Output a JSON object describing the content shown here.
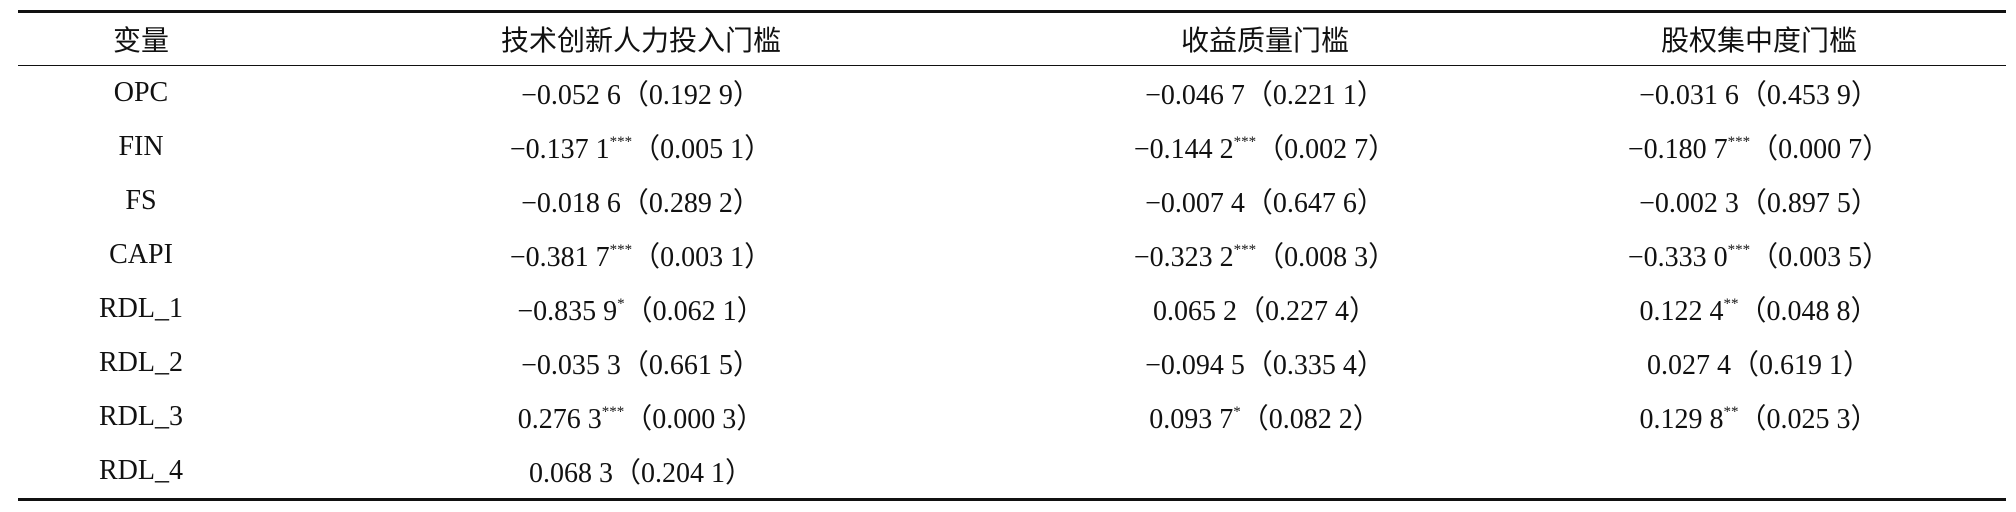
{
  "table": {
    "header": [
      "变量",
      "技术创新人力投入门槛",
      "收益质量门槛",
      "股权集中度门槛"
    ],
    "rows": [
      [
        "OPC",
        {
          "coef": "−0.052 6",
          "p": "（0.192 9）"
        },
        {
          "coef": "−0.046 7",
          "p": "（0.221 1）"
        },
        {
          "coef": "−0.031 6",
          "p": "（0.453 9）"
        }
      ],
      [
        "FIN",
        {
          "coef": "−0.137 1",
          "sig": "***",
          "p": "（0.005 1）"
        },
        {
          "coef": "−0.144 2",
          "sig": "***",
          "p": "（0.002 7）"
        },
        {
          "coef": "−0.180 7",
          "sig": "***",
          "p": "（0.000 7）"
        }
      ],
      [
        "FS",
        {
          "coef": "−0.018 6",
          "p": "（0.289 2）"
        },
        {
          "coef": "−0.007 4",
          "p": "（0.647 6）"
        },
        {
          "coef": "−0.002 3",
          "p": "（0.897 5）"
        }
      ],
      [
        "CAPI",
        {
          "coef": "−0.381 7",
          "sig": "***",
          "p": "（0.003 1）"
        },
        {
          "coef": "−0.323 2",
          "sig": "***",
          "p": "（0.008 3）"
        },
        {
          "coef": "−0.333 0",
          "sig": "***",
          "p": "（0.003 5）"
        }
      ],
      [
        "RDL_1",
        {
          "coef": "−0.835 9",
          "sig": "*",
          "p": "（0.062 1）"
        },
        {
          "coef": "0.065 2",
          "p": "（0.227 4）"
        },
        {
          "coef": "0.122 4",
          "sig": "**",
          "p": "（0.048 8）"
        }
      ],
      [
        "RDL_2",
        {
          "coef": "−0.035 3",
          "p": "（0.661 5）"
        },
        {
          "coef": "−0.094 5",
          "p": "（0.335 4）"
        },
        {
          "coef": "0.027 4",
          "p": "（0.619 1）"
        }
      ],
      [
        "RDL_3",
        {
          "coef": "0.276 3",
          "sig": "***",
          "p": "（0.000 3）"
        },
        {
          "coef": "0.093 7",
          "sig": "*",
          "p": "（0.082 2）"
        },
        {
          "coef": "0.129 8",
          "sig": "**",
          "p": "（0.025 3）"
        }
      ],
      [
        "RDL_4",
        {
          "coef": "0.068 3",
          "p": "（0.204 1）"
        }
      ]
    ]
  }
}
